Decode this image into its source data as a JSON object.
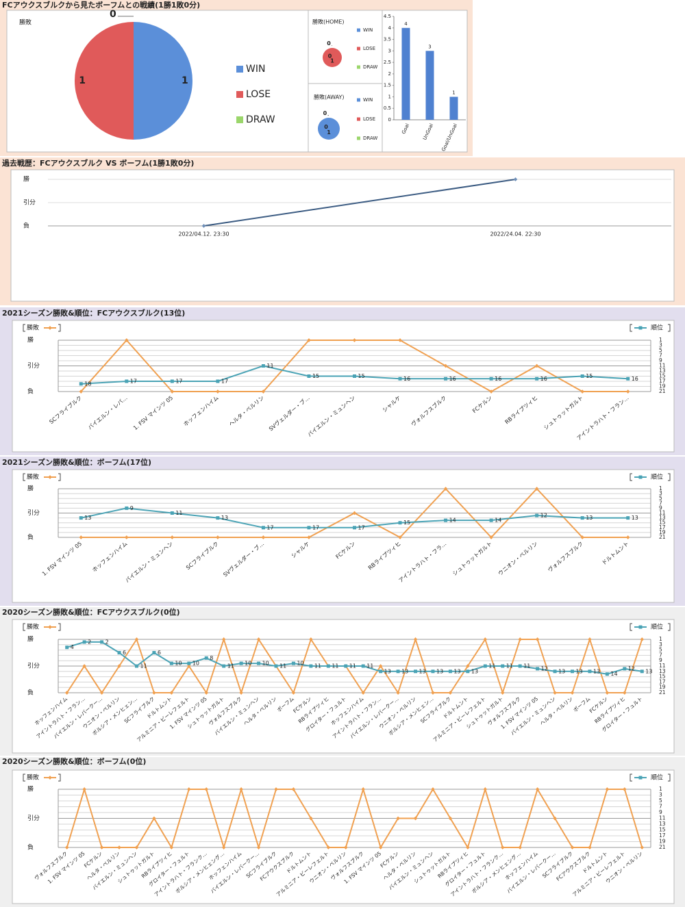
{
  "chart_data": [
    {
      "type": "pie",
      "title": "FCアウクスブルクから見たボーフムとの戦績(1勝1敗0分)",
      "label": "勝敗",
      "categories": [
        "WIN",
        "LOSE",
        "DRAW"
      ],
      "values": [
        1,
        1,
        0
      ],
      "colors": [
        "#5b8fd9",
        "#e05a5a",
        "#9bd66b"
      ]
    },
    {
      "type": "pie",
      "title": "勝敗(HOME)",
      "categories": [
        "WIN",
        "LOSE",
        "DRAW"
      ],
      "values": [
        0,
        1,
        0
      ],
      "colors": [
        "#5b8fd9",
        "#e05a5a",
        "#9bd66b"
      ]
    },
    {
      "type": "pie",
      "title": "勝敗(AWAY)",
      "categories": [
        "WIN",
        "LOSE",
        "DRAW"
      ],
      "values": [
        1,
        0,
        0
      ],
      "colors": [
        "#5b8fd9",
        "#e05a5a",
        "#9bd66b"
      ]
    },
    {
      "type": "bar",
      "categories": [
        "Goal",
        "UnGoal",
        "Goal/UnGoal"
      ],
      "values": [
        4,
        3,
        1
      ],
      "color": "#4f81d0",
      "ylim": [
        0,
        4.5
      ],
      "yticks": [
        0,
        0.5,
        1,
        1.5,
        2,
        2.5,
        3,
        3.5,
        4,
        4.5
      ]
    },
    {
      "type": "line",
      "title": "過去戦歴：FCアウクスブルク VS ボーフム(1勝1敗0分)",
      "categories": [
        "2022/04.12. 23:30",
        "2022/24.04. 22:30"
      ],
      "values": [
        0,
        2
      ],
      "color": "#3b5b82",
      "ylim": [
        0,
        2
      ],
      "yticks": [
        {
          "value": 0,
          "label": "負"
        },
        {
          "value": 1,
          "label": "引分"
        },
        {
          "value": 2,
          "label": "勝"
        }
      ],
      "grid": true
    },
    {
      "type": "combo",
      "title": "2021シーズン勝敗&順位：FCアウクスブルク(13位)",
      "categories": [
        "SCフライブルク",
        "バイエルン・レバ…",
        "1. FSV マインツ 05",
        "ホッフェンハイム",
        "ヘルタ・ベルリン",
        "SVヴェルダー・ブ…",
        "バイエルン・ミュンヘン",
        "シャルケ",
        "ヴォルフスブルク",
        "FCケルン",
        "RBライプツィヒ",
        "シュトゥットガルト",
        "アイントラハト・フラン…"
      ],
      "ylim": [
        0,
        2
      ],
      "yticks": [
        {
          "value": 0,
          "label": "負"
        },
        {
          "value": 1,
          "label": "引分"
        },
        {
          "value": 2,
          "label": "勝"
        }
      ],
      "y2lim": [
        21,
        1
      ],
      "y2ticks": [
        1,
        3,
        5,
        7,
        9,
        11,
        13,
        15,
        17,
        19,
        21
      ],
      "series": [
        {
          "name": "勝敗",
          "color": "#f0a050",
          "values": [
            0,
            2,
            0,
            0,
            0,
            2,
            2,
            2,
            1,
            0,
            1,
            0,
            0
          ]
        },
        {
          "name": "順位",
          "color": "#4aa3b5",
          "axis": "y2",
          "values": [
            18,
            17,
            17,
            17,
            11,
            15,
            15,
            16,
            16,
            16,
            16,
            15,
            16
          ]
        }
      ]
    },
    {
      "type": "combo",
      "title": "2021シーズン勝敗&順位：ボーフム(17位)",
      "categories": [
        "1. FSV マインツ 05",
        "ホッフェンハイム",
        "バイエルン・ミュンヘン",
        "SCフライブルク",
        "SVヴェルダー・ブ…",
        "シャルケ",
        "FCケルン",
        "RBライプツィヒ",
        "アイントラハト・フラ…",
        "シュトゥットガルト",
        "ウニオン・ベルリン",
        "ヴォルフスブルク",
        "ドルトムント"
      ],
      "ylim": [
        0,
        2
      ],
      "yticks": [
        {
          "value": 0,
          "label": "負"
        },
        {
          "value": 1,
          "label": "引分"
        },
        {
          "value": 2,
          "label": "勝"
        }
      ],
      "y2lim": [
        21,
        1
      ],
      "y2ticks": [
        1,
        3,
        5,
        7,
        9,
        11,
        13,
        15,
        17,
        19,
        21
      ],
      "series": [
        {
          "name": "勝敗",
          "color": "#f0a050",
          "values": [
            0,
            0,
            0,
            0,
            0,
            0,
            1,
            0,
            2,
            0,
            2,
            0,
            0
          ]
        },
        {
          "name": "順位",
          "color": "#4aa3b5",
          "axis": "y2",
          "values": [
            13,
            9,
            11,
            13,
            17,
            17,
            17,
            15,
            14,
            14,
            12,
            13,
            13
          ]
        }
      ]
    },
    {
      "type": "combo",
      "title": "2020シーズン勝敗&順位：FCアウクスブルク(0位)",
      "categories": [
        "ホッフェンハイム",
        "アイントラハト・フラン…",
        "バイエルン・レバークー…",
        "ウニオン・ベルリン",
        "ボルシア・メンヒェン…",
        "SCフライブルク",
        "ドルトムント",
        "アルミニア・ビーレフェルト",
        "1. FSV マインツ 05",
        "シュトゥットガルト",
        "ヴォルフスブルク",
        "バイエルン・ミュンヘン",
        "ヘルタ・ベルリン",
        "ボーフム",
        "FCケルン",
        "RBライプツィヒ",
        "グロイター・フュルト",
        "ホッフェンハイム",
        "アイントラハト・フラン…",
        "バイエルン・レバークー…",
        "ウニオン・ベルリン",
        "ボルシア・メンヒェン…",
        "SCフライブルク",
        "ドルトムント",
        "アルミニア・ビーレフェルト",
        "シュトゥットガルト",
        "ヴォルフスブルク",
        "1. FSV マインツ 05",
        "バイエルン・ミュンヘン",
        "ヘルタ・ベルリン",
        "ボーフム",
        "FCケルン",
        "RBライプツィヒ",
        "グロイター・フュルト"
      ],
      "ylim": [
        0,
        2
      ],
      "yticks": [
        {
          "value": 0,
          "label": "負"
        },
        {
          "value": 1,
          "label": "引分"
        },
        {
          "value": 2,
          "label": "勝"
        }
      ],
      "y2lim": [
        21,
        1
      ],
      "y2ticks": [
        1,
        3,
        5,
        7,
        9,
        11,
        13,
        15,
        17,
        19,
        21
      ],
      "series": [
        {
          "name": "勝敗",
          "color": "#f0a050",
          "values": [
            0,
            1,
            0,
            1,
            2,
            0,
            0,
            1,
            0,
            2,
            0,
            2,
            1,
            0,
            2,
            1,
            1,
            0,
            1,
            0,
            2,
            0,
            0,
            1,
            2,
            0,
            2,
            2,
            0,
            0,
            2,
            0,
            0,
            2
          ]
        },
        {
          "name": "順位",
          "color": "#4aa3b5",
          "axis": "y2",
          "values": [
            4,
            2,
            2,
            6,
            11,
            6,
            10,
            10,
            8,
            11,
            10,
            10,
            11,
            10,
            11,
            11,
            11,
            11,
            13,
            13,
            13,
            13,
            13,
            13,
            11,
            11,
            11,
            12,
            13,
            13,
            13,
            14,
            12,
            13
          ]
        }
      ]
    },
    {
      "type": "combo",
      "title": "2020シーズン勝敗&順位：ボーフム(0位)",
      "categories": [
        "ヴォルフスブルク",
        "1. FSV マインツ 05",
        "FCケルン",
        "ヘルタ・ベルリン",
        "バイエルン・ミュンヘン",
        "シュトゥットガルト",
        "RBライプツィヒ",
        "グロイター・フュルト",
        "アイントラハト・フランク…",
        "ボルシア・メンヒェング…",
        "ホッフェンハイム",
        "バイエルン・レバークー…",
        "SCフライブルク",
        "FCアウクスブルク",
        "ドルトムント",
        "アルミニア・ビーレフェルト",
        "ウニオン・ベルリン",
        "ヴォルフスブルク",
        "1. FSV マインツ 05",
        "FCケルン",
        "ヘルタ・ベルリン",
        "バイエルン・ミュンヘン",
        "シュトゥットガルト",
        "RBライプツィヒ",
        "グロイター・フュルト",
        "アイントラハト・フランク…",
        "ボルシア・メンヒェング…",
        "ホッフェンハイム",
        "バイエルン・レバークー…",
        "SCフライブルク",
        "FCアウクスブルク",
        "ドルトムント",
        "アルミニア・ビーレフェルト",
        "ウニオン・ベルリン"
      ],
      "ylim": [
        0,
        2
      ],
      "yticks": [
        {
          "value": 0,
          "label": "負"
        },
        {
          "value": 1,
          "label": "引分"
        },
        {
          "value": 2,
          "label": "勝"
        }
      ],
      "y2lim": [
        21,
        1
      ],
      "y2ticks": [
        1,
        3,
        5,
        7,
        9,
        11,
        13,
        15,
        17,
        19,
        21
      ],
      "series": [
        {
          "name": "勝敗",
          "color": "#f0a050",
          "values": [
            0,
            2,
            0,
            0,
            0,
            1,
            0,
            2,
            2,
            0,
            2,
            0,
            2,
            2,
            1,
            0,
            0,
            2,
            0,
            1,
            1,
            2,
            1,
            0,
            2,
            0,
            0,
            2,
            1,
            0,
            0,
            2,
            2,
            0
          ]
        },
        {
          "name": "順位",
          "color": "#4aa3b5",
          "axis": "y2",
          "values": [
            null,
            null,
            null,
            null,
            null,
            null,
            null,
            null,
            null,
            null,
            null,
            null,
            null,
            null,
            null,
            null,
            null,
            null,
            null,
            null,
            null,
            null,
            null,
            null,
            null,
            null,
            null,
            null,
            null,
            null,
            null,
            null,
            null,
            null
          ]
        }
      ]
    }
  ]
}
